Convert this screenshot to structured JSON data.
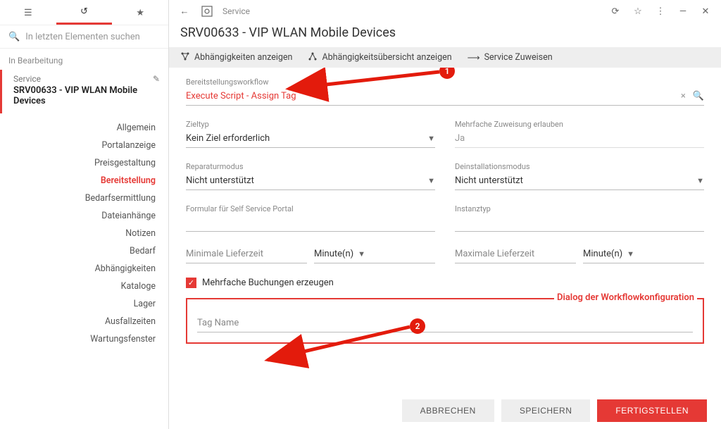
{
  "colors": {
    "accent": "#e53935",
    "muted": "#888",
    "border": "#bbb"
  },
  "sidebar": {
    "search_placeholder": "In letzten Elementen suchen",
    "section": "In Bearbeitung",
    "service_label": "Service",
    "service_name": "SRV00633 - VIP WLAN Mobile Devices",
    "nav": [
      "Allgemein",
      "Portalanzeige",
      "Preisgestaltung",
      "Bereitstellung",
      "Bedarfsermittlung",
      "Dateianhänge",
      "Notizen",
      "Bedarf",
      "Abhängigkeiten",
      "Kataloge",
      "Lager",
      "Ausfallzeiten",
      "Wartungsfenster"
    ],
    "nav_active_index": 3
  },
  "header": {
    "breadcrumb": "Service",
    "title": "SRV00633 - VIP WLAN Mobile Devices"
  },
  "actions": {
    "a1": "Abhängigkeiten anzeigen",
    "a2": "Abhängigkeitsübersicht anzeigen",
    "a3": "Service Zuweisen"
  },
  "form": {
    "workflow_label": "Bereitstellungsworkflow",
    "workflow_value": "Execute Script - Assign Tag",
    "zieltyp_label": "Zieltyp",
    "zieltyp_value": "Kein Ziel erforderlich",
    "mehrfache_label": "Mehrfache Zuweisung erlauben",
    "mehrfache_value": "Ja",
    "reparatur_label": "Reparaturmodus",
    "reparatur_value": "Nicht unterstützt",
    "deinstall_label": "Deinstallationsmodus",
    "deinstall_value": "Nicht unterstützt",
    "formular_label": "Formular für Self Service Portal",
    "instanztyp_label": "Instanztyp",
    "minliefer_label": "Minimale Lieferzeit",
    "min_unit": "Minute(n)",
    "maxliefer_label": "Maximale Lieferzeit",
    "max_unit": "Minute(n)",
    "checkbox_label": "Mehrfache Buchungen erzeugen",
    "dialog_title": "Dialog der Workflowkonfiguration",
    "tagname_label": "Tag Name"
  },
  "footer": {
    "cancel": "ABBRECHEN",
    "save": "SPEICHERN",
    "finish": "FERTIGSTELLEN"
  },
  "callouts": {
    "b1": "1",
    "b2": "2"
  }
}
